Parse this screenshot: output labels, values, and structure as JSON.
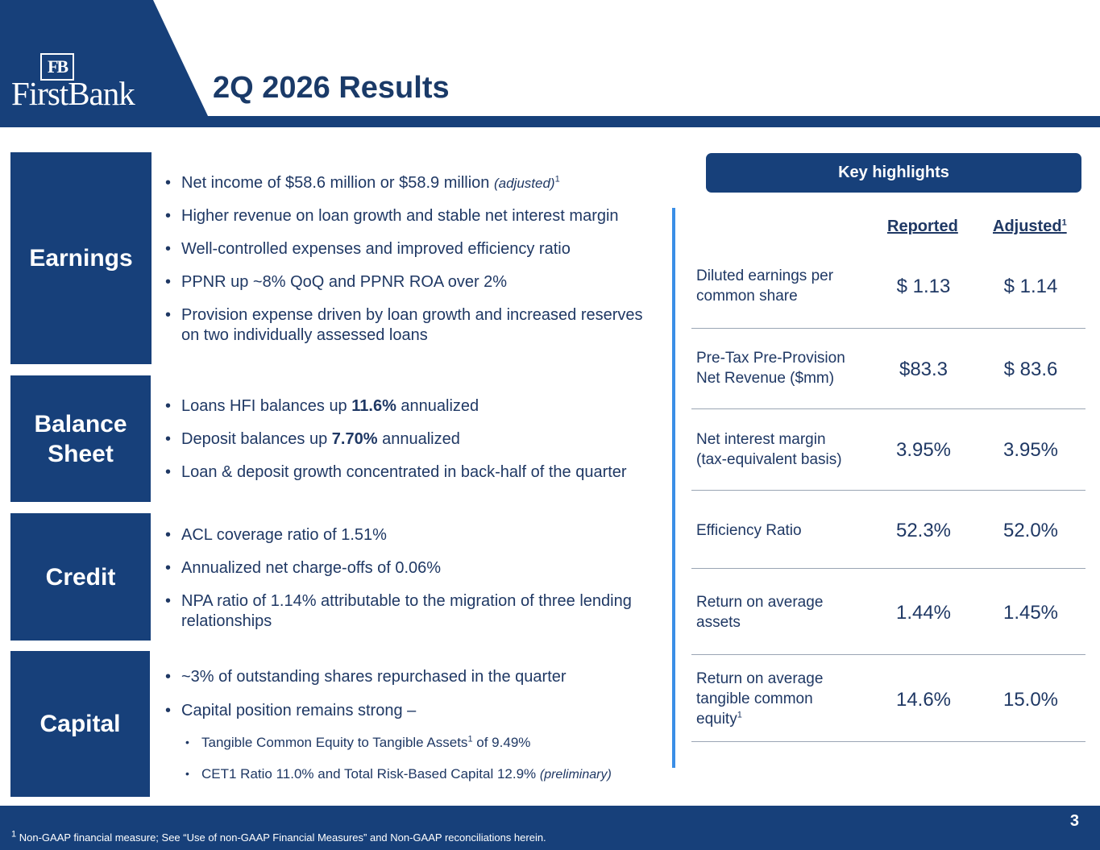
{
  "header": {
    "logo_monogram": "FB",
    "logo_text": "FirstBank",
    "title": "2Q 2026 Results"
  },
  "sections": {
    "earnings": {
      "label": "Earnings",
      "bullets": {
        "b1_text": "Net income of $58.6 million or $58.9 million ",
        "b1_italic": "(adjusted)",
        "b1_sup": "1",
        "b2": "Higher revenue on loan growth and stable net interest margin",
        "b3": "Well-controlled expenses and improved efficiency ratio",
        "b4": "PPNR up ~8% QoQ and PPNR ROA over 2%",
        "b5": "Provision expense driven by loan growth and increased reserves on two individually assessed loans"
      }
    },
    "balance_sheet": {
      "label_line1": "Balance",
      "label_line2": "Sheet",
      "bullets": {
        "b1_pre": "Loans HFI balances up ",
        "b1_bold": "11.6%",
        "b1_post": " annualized",
        "b2_pre": "Deposit balances up ",
        "b2_bold": "7.70%",
        "b2_post": " annualized",
        "b3": "Loan & deposit growth concentrated in back-half of the quarter"
      }
    },
    "credit": {
      "label": "Credit",
      "bullets": {
        "b1": "ACL coverage ratio of 1.51%",
        "b2": "Annualized net charge-offs of 0.06%",
        "b3": "NPA ratio of 1.14% attributable to the migration of three lending relationships"
      }
    },
    "capital": {
      "label": "Capital",
      "bullets": {
        "b1": "~3% of outstanding shares repurchased in the quarter",
        "b2": "Capital position remains strong –",
        "s1_pre": "Tangible Common Equity to Tangible Assets",
        "s1_sup": "1",
        "s1_post": " of 9.49%",
        "s2_text": "CET1 Ratio 11.0% and Total Risk-Based Capital 12.9% ",
        "s2_italic": "(preliminary)"
      }
    }
  },
  "highlights": {
    "button_label": "Key highlights",
    "col_reported": "Reported",
    "col_adjusted": "Adjusted",
    "col_adjusted_sup": "1",
    "rows": [
      {
        "label_1": "Diluted earnings per",
        "label_2": "common share",
        "reported": "$ 1.13",
        "adjusted": "$ 1.14"
      },
      {
        "label_1": "Pre-Tax Pre-Provision",
        "label_2": "Net Revenue ($mm)",
        "reported": "$83.3",
        "adjusted": "$ 83.6"
      },
      {
        "label_1": "Net interest margin",
        "label_2": "(tax-equivalent basis)",
        "reported": "3.95%",
        "adjusted": "3.95%"
      },
      {
        "label_1": "Efficiency Ratio",
        "label_2": "",
        "reported": "52.3%",
        "adjusted": "52.0%"
      },
      {
        "label_1": "Return on average",
        "label_2": "assets",
        "reported": "1.44%",
        "adjusted": "1.45%"
      },
      {
        "label_1": "Return on average",
        "label_2": "tangible common",
        "label_3": "equity",
        "label_sup": "1",
        "reported": "14.6%",
        "adjusted": "15.0%"
      }
    ]
  },
  "footer": {
    "footnote_sup": "1",
    "footnote": " Non-GAAP financial measure; See “Use of non-GAAP Financial Measures” and Non-GAAP reconciliations herein.",
    "page_number": "3"
  },
  "colors": {
    "navy": "#17407a",
    "accent_blue": "#3a8ee6",
    "text": "#1f3864"
  }
}
